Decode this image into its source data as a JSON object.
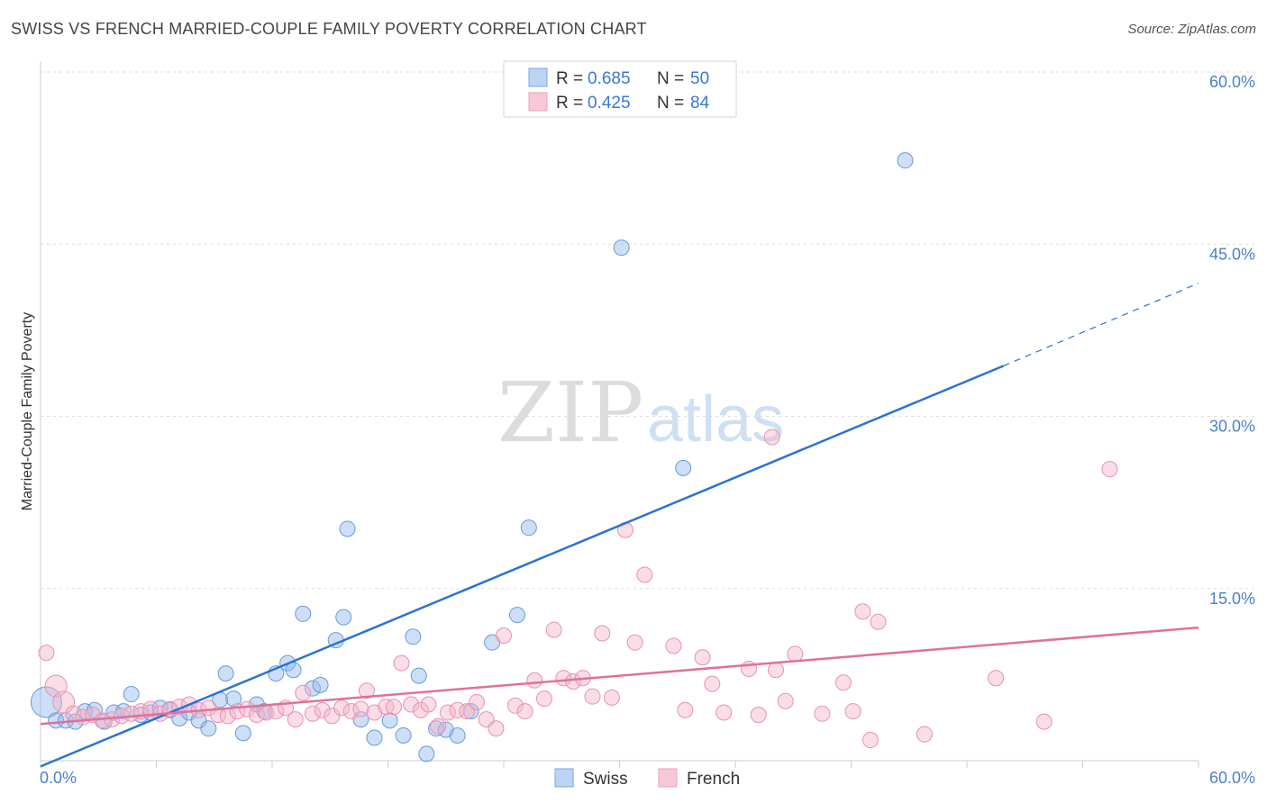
{
  "title": "SWISS VS FRENCH MARRIED-COUPLE FAMILY POVERTY CORRELATION CHART",
  "source": "Source: ZipAtlas.com",
  "watermark": {
    "zip": "ZIP",
    "atlas": "atlas"
  },
  "chart_data": {
    "type": "scatter",
    "xlabel": "",
    "ylabel": "Married-Couple Family Poverty",
    "xlim": [
      0,
      60
    ],
    "ylim": [
      0,
      60
    ],
    "x_ticks": [
      {
        "value": 0,
        "label": "0.0%"
      },
      {
        "value": 60,
        "label": "60.0%"
      }
    ],
    "y_ticks": [
      {
        "value": 15,
        "label": "15.0%"
      },
      {
        "value": 30,
        "label": "30.0%"
      },
      {
        "value": 45,
        "label": "45.0%"
      },
      {
        "value": 60,
        "label": "60.0%"
      }
    ],
    "legend": {
      "position": "top-center",
      "entries": [
        {
          "r_label": "R = ",
          "r_value": "0.685",
          "n_label": "N = ",
          "n_value": "50"
        },
        {
          "r_label": "R = ",
          "r_value": "0.425",
          "n_label": "N = ",
          "n_value": "84"
        }
      ]
    },
    "bottom_legend": [
      "Swiss",
      "French"
    ],
    "series": [
      {
        "name": "Swiss",
        "color": "#90b8ec",
        "stroke": "#6a9ad8",
        "line_color": "#2a72d4",
        "trend": {
          "x0": 0,
          "y0": -0.5,
          "x1": 49.9,
          "y1": 34.4,
          "dash_to_x": 60,
          "dash_to_y": 41.6
        },
        "points": [
          [
            0.3,
            5.1
          ],
          [
            0.8,
            3.5
          ],
          [
            1.3,
            3.5
          ],
          [
            1.8,
            3.4
          ],
          [
            2.3,
            4.3
          ],
          [
            2.8,
            4.4
          ],
          [
            3.3,
            3.4
          ],
          [
            3.8,
            4.2
          ],
          [
            4.3,
            4.3
          ],
          [
            4.7,
            5.8
          ],
          [
            5.2,
            4.0
          ],
          [
            5.7,
            4.2
          ],
          [
            6.2,
            4.6
          ],
          [
            6.7,
            4.4
          ],
          [
            7.2,
            3.7
          ],
          [
            7.7,
            4.2
          ],
          [
            8.2,
            3.5
          ],
          [
            8.7,
            2.8
          ],
          [
            9.3,
            5.3
          ],
          [
            9.6,
            7.6
          ],
          [
            10.0,
            5.4
          ],
          [
            10.5,
            2.4
          ],
          [
            11.2,
            4.9
          ],
          [
            11.6,
            4.3
          ],
          [
            12.2,
            7.6
          ],
          [
            12.8,
            8.5
          ],
          [
            13.1,
            7.9
          ],
          [
            13.6,
            12.8
          ],
          [
            14.1,
            6.3
          ],
          [
            14.5,
            6.6
          ],
          [
            15.3,
            10.5
          ],
          [
            15.7,
            12.5
          ],
          [
            15.9,
            20.2
          ],
          [
            16.6,
            3.6
          ],
          [
            17.3,
            2.0
          ],
          [
            18.1,
            3.5
          ],
          [
            18.8,
            2.2
          ],
          [
            19.3,
            10.8
          ],
          [
            19.6,
            7.4
          ],
          [
            20.0,
            0.6
          ],
          [
            20.5,
            2.8
          ],
          [
            21.0,
            2.7
          ],
          [
            21.6,
            2.2
          ],
          [
            22.3,
            4.3
          ],
          [
            23.4,
            10.3
          ],
          [
            24.7,
            12.7
          ],
          [
            25.3,
            20.3
          ],
          [
            30.1,
            44.7
          ],
          [
            33.3,
            25.5
          ],
          [
            44.8,
            52.3
          ]
        ]
      },
      {
        "name": "French",
        "color": "#f4b4c9",
        "stroke": "#e892ae",
        "line_color": "#e0709c",
        "trend": {
          "x0": 0,
          "y0": 3.2,
          "x1": 60,
          "y1": 11.6
        },
        "points": [
          [
            0.3,
            9.4
          ],
          [
            0.8,
            6.5
          ],
          [
            1.2,
            5.1
          ],
          [
            1.7,
            4.1
          ],
          [
            2.2,
            3.8
          ],
          [
            2.7,
            4.0
          ],
          [
            3.2,
            3.5
          ],
          [
            3.7,
            3.6
          ],
          [
            4.2,
            3.9
          ],
          [
            4.7,
            4.1
          ],
          [
            5.2,
            4.3
          ],
          [
            5.7,
            4.5
          ],
          [
            6.2,
            4.1
          ],
          [
            6.7,
            4.5
          ],
          [
            7.2,
            4.7
          ],
          [
            7.7,
            4.9
          ],
          [
            8.2,
            4.4
          ],
          [
            8.7,
            4.6
          ],
          [
            9.2,
            4.0
          ],
          [
            9.7,
            3.9
          ],
          [
            10.2,
            4.3
          ],
          [
            10.7,
            4.5
          ],
          [
            11.2,
            4.0
          ],
          [
            11.7,
            4.2
          ],
          [
            12.2,
            4.3
          ],
          [
            12.7,
            4.6
          ],
          [
            13.2,
            3.6
          ],
          [
            13.6,
            5.9
          ],
          [
            14.1,
            4.1
          ],
          [
            14.6,
            4.4
          ],
          [
            15.1,
            3.9
          ],
          [
            15.6,
            4.6
          ],
          [
            16.1,
            4.3
          ],
          [
            16.6,
            4.5
          ],
          [
            16.9,
            6.1
          ],
          [
            17.3,
            4.2
          ],
          [
            17.9,
            4.7
          ],
          [
            18.3,
            4.7
          ],
          [
            18.7,
            8.5
          ],
          [
            19.2,
            4.9
          ],
          [
            19.7,
            4.4
          ],
          [
            20.1,
            4.9
          ],
          [
            20.6,
            3.0
          ],
          [
            21.1,
            4.2
          ],
          [
            21.6,
            4.4
          ],
          [
            22.1,
            4.3
          ],
          [
            22.6,
            5.1
          ],
          [
            23.1,
            3.6
          ],
          [
            23.6,
            2.8
          ],
          [
            24.0,
            10.9
          ],
          [
            24.6,
            4.8
          ],
          [
            25.1,
            4.3
          ],
          [
            25.6,
            7.0
          ],
          [
            26.1,
            5.4
          ],
          [
            26.6,
            11.4
          ],
          [
            27.1,
            7.2
          ],
          [
            27.6,
            6.9
          ],
          [
            28.1,
            7.2
          ],
          [
            28.6,
            5.6
          ],
          [
            29.1,
            11.1
          ],
          [
            29.6,
            5.5
          ],
          [
            30.3,
            20.1
          ],
          [
            30.8,
            10.3
          ],
          [
            31.3,
            16.2
          ],
          [
            32.8,
            10.0
          ],
          [
            33.4,
            4.4
          ],
          [
            34.3,
            9.0
          ],
          [
            34.8,
            6.7
          ],
          [
            35.4,
            4.2
          ],
          [
            36.7,
            8.0
          ],
          [
            37.2,
            4.0
          ],
          [
            38.1,
            7.9
          ],
          [
            38.6,
            5.2
          ],
          [
            39.1,
            9.3
          ],
          [
            37.9,
            28.2
          ],
          [
            40.5,
            4.1
          ],
          [
            41.6,
            6.8
          ],
          [
            42.1,
            4.3
          ],
          [
            42.6,
            13.0
          ],
          [
            43.0,
            1.8
          ],
          [
            43.4,
            12.1
          ],
          [
            45.8,
            2.3
          ],
          [
            49.5,
            7.2
          ],
          [
            52.0,
            3.4
          ],
          [
            55.4,
            25.4
          ]
        ]
      }
    ]
  }
}
